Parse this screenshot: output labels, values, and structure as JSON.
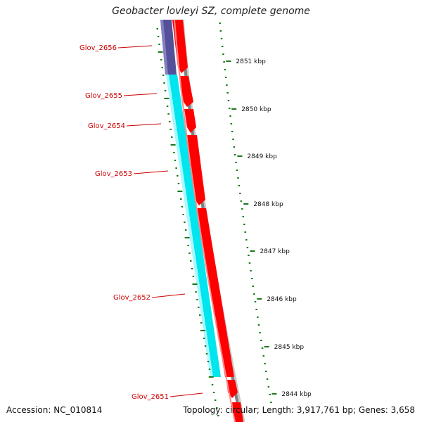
{
  "title": "Geobacter lovleyi SZ, complete genome",
  "footer": {
    "accession": "Accession: NC_010814",
    "summary": "Topology: circular; Length: 3,917,761 bp; Genes: 3,658"
  },
  "colors": {
    "cds_reverse": "#55509a",
    "cds_forward_light": "#00e5ee",
    "gene_red": "#ff0000",
    "backbone": "#808080",
    "tick": "#1a7a1a",
    "label_red": "#cc0000"
  },
  "genes": [
    {
      "id": "Glov_2656",
      "label": "Glov_2656"
    },
    {
      "id": "Glov_2655",
      "label": "Glov_2655"
    },
    {
      "id": "Glov_2654",
      "label": "Glov_2654"
    },
    {
      "id": "Glov_2653",
      "label": "Glov_2653"
    },
    {
      "id": "Glov_2652",
      "label": "Glov_2652"
    },
    {
      "id": "Glov_2651",
      "label": "Glov_2651"
    }
  ],
  "scale": [
    {
      "label": "2851 kbp"
    },
    {
      "label": "2850 kbp"
    },
    {
      "label": "2849 kbp"
    },
    {
      "label": "2848 kbp"
    },
    {
      "label": "2847 kbp"
    },
    {
      "label": "2846 kbp"
    },
    {
      "label": "2845 kbp"
    },
    {
      "label": "2844 kbp"
    }
  ]
}
